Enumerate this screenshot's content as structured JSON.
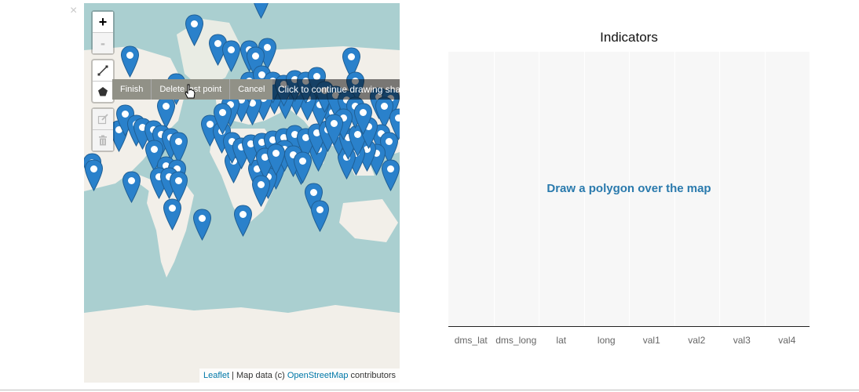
{
  "close_symbol": "×",
  "map": {
    "zoom_in": "+",
    "zoom_out": "-",
    "icons": {
      "draw_line": "polyline-icon",
      "draw_polygon": "polygon-icon",
      "edit": "edit-icon",
      "delete": "trash-icon",
      "marker": "map-marker-icon",
      "cursor": "hand-pointer-icon"
    },
    "draw_actions": [
      "Finish",
      "Delete last point",
      "Cancel"
    ],
    "tooltip": "Click to continue drawing shape.",
    "attribution": {
      "leaflet": "Leaflet",
      "middle": " | Map data (c) ",
      "osm": "OpenStreetMap",
      "suffix": " contributors"
    },
    "colors": {
      "water": "#aacfd0",
      "land": "#f2efe9",
      "marker": "#2a81cb"
    }
  },
  "chart_data": {
    "type": "bar",
    "title": "Indicators",
    "categories": [
      "dms_lat",
      "dms_long",
      "lat",
      "long",
      "val1",
      "val2",
      "val3",
      "val4"
    ],
    "series": [],
    "message": "Draw a polygon over the map"
  }
}
